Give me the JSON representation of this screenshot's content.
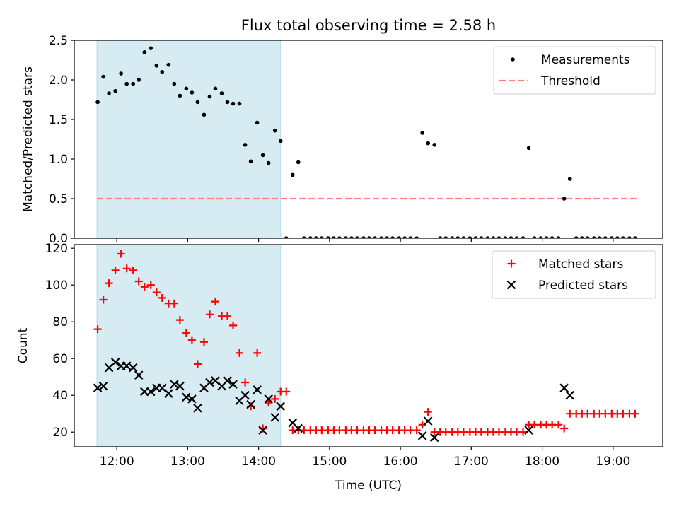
{
  "title": "Flux total observing time = 2.58 h",
  "chart_data": [
    {
      "type": "scatter",
      "ylabel": "Matched/Predicted stars",
      "xlabel": "",
      "xlim": [
        11.4,
        19.7
      ],
      "ylim": [
        0,
        2.5
      ],
      "yticks": [
        "0.0",
        "0.5",
        "1.0",
        "1.5",
        "2.0",
        "2.5"
      ],
      "highlight_span": [
        11.72,
        14.31
      ],
      "highlight_color": "#add8e6",
      "legend": {
        "position": "upper right",
        "entries": [
          "Measurements",
          "Threshold"
        ]
      },
      "threshold": {
        "name": "Threshold",
        "y": 0.5,
        "x": [
          11.72,
          19.33
        ],
        "color": "#ff7f7f",
        "style": "dashed"
      },
      "series": [
        {
          "name": "Measurements",
          "marker": "dot",
          "color": "#000000",
          "points": [
            [
              11.73,
              1.72
            ],
            [
              11.81,
              2.04
            ],
            [
              11.89,
              1.83
            ],
            [
              11.98,
              1.86
            ],
            [
              12.06,
              2.08
            ],
            [
              12.14,
              1.95
            ],
            [
              12.23,
              1.95
            ],
            [
              12.31,
              2.0
            ],
            [
              12.39,
              2.35
            ],
            [
              12.48,
              2.4
            ],
            [
              12.56,
              2.18
            ],
            [
              12.64,
              2.1
            ],
            [
              12.73,
              2.19
            ],
            [
              12.81,
              1.95
            ],
            [
              12.89,
              1.8
            ],
            [
              12.98,
              1.89
            ],
            [
              13.06,
              1.84
            ],
            [
              13.14,
              1.72
            ],
            [
              13.23,
              1.56
            ],
            [
              13.31,
              1.79
            ],
            [
              13.39,
              1.89
            ],
            [
              13.48,
              1.83
            ],
            [
              13.56,
              1.72
            ],
            [
              13.64,
              1.7
            ],
            [
              13.73,
              1.7
            ],
            [
              13.81,
              1.18
            ],
            [
              13.89,
              0.97
            ],
            [
              13.98,
              1.46
            ],
            [
              14.06,
              1.05
            ],
            [
              14.14,
              0.95
            ],
            [
              14.23,
              1.36
            ],
            [
              14.31,
              1.23
            ],
            [
              14.39,
              0.0
            ],
            [
              14.48,
              0.8
            ],
            [
              14.56,
              0.96
            ],
            [
              14.64,
              0.0
            ],
            [
              14.73,
              0.0
            ],
            [
              14.81,
              0.0
            ],
            [
              14.89,
              0.0
            ],
            [
              14.98,
              0.0
            ],
            [
              15.06,
              0.0
            ],
            [
              15.14,
              0.0
            ],
            [
              15.23,
              0.0
            ],
            [
              15.31,
              0.0
            ],
            [
              15.39,
              0.0
            ],
            [
              15.48,
              0.0
            ],
            [
              15.56,
              0.0
            ],
            [
              15.64,
              0.0
            ],
            [
              15.73,
              0.0
            ],
            [
              15.81,
              0.0
            ],
            [
              15.89,
              0.0
            ],
            [
              15.98,
              0.0
            ],
            [
              16.06,
              0.0
            ],
            [
              16.14,
              0.0
            ],
            [
              16.23,
              0.0
            ],
            [
              16.31,
              1.33
            ],
            [
              16.39,
              1.2
            ],
            [
              16.48,
              1.18
            ],
            [
              16.56,
              0.0
            ],
            [
              16.64,
              0.0
            ],
            [
              16.73,
              0.0
            ],
            [
              16.81,
              0.0
            ],
            [
              16.89,
              0.0
            ],
            [
              16.98,
              0.0
            ],
            [
              17.06,
              0.0
            ],
            [
              17.14,
              0.0
            ],
            [
              17.23,
              0.0
            ],
            [
              17.31,
              0.0
            ],
            [
              17.39,
              0.0
            ],
            [
              17.48,
              0.0
            ],
            [
              17.56,
              0.0
            ],
            [
              17.64,
              0.0
            ],
            [
              17.73,
              0.0
            ],
            [
              17.81,
              1.14
            ],
            [
              17.89,
              0.0
            ],
            [
              17.98,
              0.0
            ],
            [
              18.06,
              0.0
            ],
            [
              18.14,
              0.0
            ],
            [
              18.23,
              0.0
            ],
            [
              18.31,
              0.5
            ],
            [
              18.39,
              0.75
            ],
            [
              18.48,
              0.0
            ],
            [
              18.56,
              0.0
            ],
            [
              18.64,
              0.0
            ],
            [
              18.73,
              0.0
            ],
            [
              18.81,
              0.0
            ],
            [
              18.89,
              0.0
            ],
            [
              18.98,
              0.0
            ],
            [
              19.06,
              0.0
            ],
            [
              19.14,
              0.0
            ],
            [
              19.23,
              0.0
            ],
            [
              19.31,
              0.0
            ]
          ]
        }
      ]
    },
    {
      "type": "scatter",
      "ylabel": "Count",
      "xlabel": "Time (UTC)",
      "xlim": [
        11.4,
        19.7
      ],
      "ylim": [
        12,
        122
      ],
      "yticks": [
        "20",
        "40",
        "60",
        "80",
        "100",
        "120"
      ],
      "xticks": [
        "12:00",
        "13:00",
        "14:00",
        "15:00",
        "16:00",
        "17:00",
        "18:00",
        "19:00"
      ],
      "highlight_span": [
        11.72,
        14.31
      ],
      "highlight_color": "#add8e6",
      "legend": {
        "position": "upper right",
        "entries": [
          "Matched stars",
          "Predicted stars"
        ]
      },
      "series": [
        {
          "name": "Matched stars",
          "marker": "plus",
          "color": "#ff0000",
          "points": [
            [
              11.73,
              76
            ],
            [
              11.81,
              92
            ],
            [
              11.89,
              101
            ],
            [
              11.98,
              108
            ],
            [
              12.06,
              117
            ],
            [
              12.14,
              109
            ],
            [
              12.23,
              108
            ],
            [
              12.31,
              102
            ],
            [
              12.39,
              99
            ],
            [
              12.48,
              100
            ],
            [
              12.56,
              96
            ],
            [
              12.64,
              93
            ],
            [
              12.73,
              90
            ],
            [
              12.81,
              90
            ],
            [
              12.89,
              81
            ],
            [
              12.98,
              74
            ],
            [
              13.06,
              70
            ],
            [
              13.14,
              57
            ],
            [
              13.23,
              69
            ],
            [
              13.31,
              84
            ],
            [
              13.39,
              91
            ],
            [
              13.48,
              83
            ],
            [
              13.56,
              83
            ],
            [
              13.64,
              78
            ],
            [
              13.73,
              63
            ],
            [
              13.81,
              47
            ],
            [
              13.89,
              34
            ],
            [
              13.98,
              63
            ],
            [
              14.06,
              22
            ],
            [
              14.14,
              36
            ],
            [
              14.23,
              38
            ],
            [
              14.31,
              42
            ],
            [
              14.39,
              42
            ],
            [
              14.48,
              21
            ],
            [
              14.56,
              21
            ],
            [
              14.64,
              21
            ],
            [
              14.73,
              21
            ],
            [
              14.81,
              21
            ],
            [
              14.89,
              21
            ],
            [
              14.98,
              21
            ],
            [
              15.06,
              21
            ],
            [
              15.14,
              21
            ],
            [
              15.23,
              21
            ],
            [
              15.31,
              21
            ],
            [
              15.39,
              21
            ],
            [
              15.48,
              21
            ],
            [
              15.56,
              21
            ],
            [
              15.64,
              21
            ],
            [
              15.73,
              21
            ],
            [
              15.81,
              21
            ],
            [
              15.89,
              21
            ],
            [
              15.98,
              21
            ],
            [
              16.06,
              21
            ],
            [
              16.14,
              21
            ],
            [
              16.23,
              21
            ],
            [
              16.31,
              24
            ],
            [
              16.39,
              31
            ],
            [
              16.48,
              20
            ],
            [
              16.56,
              20
            ],
            [
              16.64,
              20
            ],
            [
              16.73,
              20
            ],
            [
              16.81,
              20
            ],
            [
              16.89,
              20
            ],
            [
              16.98,
              20
            ],
            [
              17.06,
              20
            ],
            [
              17.14,
              20
            ],
            [
              17.23,
              20
            ],
            [
              17.31,
              20
            ],
            [
              17.39,
              20
            ],
            [
              17.48,
              20
            ],
            [
              17.56,
              20
            ],
            [
              17.64,
              20
            ],
            [
              17.73,
              20
            ],
            [
              17.81,
              24
            ],
            [
              17.89,
              24
            ],
            [
              17.98,
              24
            ],
            [
              18.06,
              24
            ],
            [
              18.14,
              24
            ],
            [
              18.23,
              24
            ],
            [
              18.31,
              22
            ],
            [
              18.39,
              30
            ],
            [
              18.48,
              30
            ],
            [
              18.56,
              30
            ],
            [
              18.64,
              30
            ],
            [
              18.73,
              30
            ],
            [
              18.81,
              30
            ],
            [
              18.89,
              30
            ],
            [
              18.98,
              30
            ],
            [
              19.06,
              30
            ],
            [
              19.14,
              30
            ],
            [
              19.23,
              30
            ],
            [
              19.31,
              30
            ]
          ]
        },
        {
          "name": "Predicted stars",
          "marker": "x",
          "color": "#000000",
          "points": [
            [
              11.73,
              44
            ],
            [
              11.81,
              45
            ],
            [
              11.89,
              55
            ],
            [
              11.98,
              58
            ],
            [
              12.06,
              56
            ],
            [
              12.14,
              56
            ],
            [
              12.23,
              55
            ],
            [
              12.31,
              51
            ],
            [
              12.39,
              42
            ],
            [
              12.48,
              42
            ],
            [
              12.56,
              44
            ],
            [
              12.64,
              44
            ],
            [
              12.73,
              41
            ],
            [
              12.81,
              46
            ],
            [
              12.89,
              45
            ],
            [
              12.98,
              39
            ],
            [
              13.06,
              38
            ],
            [
              13.14,
              33
            ],
            [
              13.23,
              44
            ],
            [
              13.31,
              47
            ],
            [
              13.39,
              48
            ],
            [
              13.48,
              45
            ],
            [
              13.56,
              48
            ],
            [
              13.64,
              46
            ],
            [
              13.73,
              37
            ],
            [
              13.81,
              40
            ],
            [
              13.89,
              35
            ],
            [
              13.98,
              43
            ],
            [
              14.06,
              21
            ],
            [
              14.14,
              38
            ],
            [
              14.23,
              28
            ],
            [
              14.31,
              34
            ],
            [
              14.48,
              25
            ],
            [
              14.56,
              22
            ],
            [
              16.31,
              18
            ],
            [
              16.39,
              26
            ],
            [
              16.48,
              17
            ],
            [
              17.81,
              21
            ],
            [
              18.31,
              44
            ],
            [
              18.39,
              40
            ]
          ]
        }
      ]
    }
  ]
}
